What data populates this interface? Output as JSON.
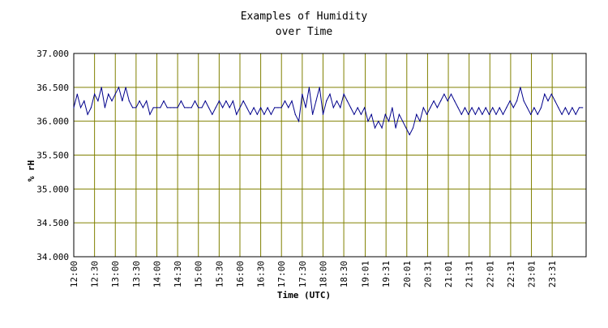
{
  "chart_data": {
    "type": "line",
    "title": [
      "Examples of Humidity",
      "over Time"
    ],
    "xlabel": "Time (UTC)",
    "ylabel": "% rH",
    "ylim": [
      34.0,
      37.0
    ],
    "xlim": [
      "12:00",
      "24:20"
    ],
    "y_ticks": [
      "34.000",
      "34.500",
      "35.000",
      "35.500",
      "36.000",
      "36.500",
      "37.000"
    ],
    "x_ticks": [
      "12:00",
      "12:30",
      "13:00",
      "13:30",
      "14:00",
      "14:30",
      "15:00",
      "15:30",
      "16:00",
      "16:30",
      "17:00",
      "17:30",
      "18:00",
      "18:30",
      "19:01",
      "19:31",
      "20:01",
      "20:31",
      "21:01",
      "21:31",
      "22:01",
      "22:31",
      "23:01",
      "23:31"
    ],
    "grid": true,
    "colors": {
      "line": "#00008b",
      "grid": "#808000",
      "background": "#ffffff",
      "frame": "#000000"
    },
    "series": [
      {
        "x": [
          "12:00",
          "12:05",
          "12:10",
          "12:15",
          "12:20",
          "12:25",
          "12:30",
          "12:35",
          "12:40",
          "12:45",
          "12:50",
          "12:55",
          "13:00",
          "13:05",
          "13:10",
          "13:15",
          "13:20",
          "13:25",
          "13:30",
          "13:35",
          "13:40",
          "13:45",
          "13:50",
          "13:55",
          "14:00",
          "14:05",
          "14:10",
          "14:15",
          "14:20",
          "14:25",
          "14:30",
          "14:35",
          "14:40",
          "14:45",
          "14:50",
          "14:55",
          "15:00",
          "15:05",
          "15:10",
          "15:15",
          "15:20",
          "15:25",
          "15:30",
          "15:35",
          "15:40",
          "15:45",
          "15:50",
          "15:55",
          "16:00",
          "16:05",
          "16:10",
          "16:15",
          "16:20",
          "16:25",
          "16:30",
          "16:35",
          "16:40",
          "16:45",
          "16:50",
          "16:55",
          "17:00",
          "17:05",
          "17:10",
          "17:15",
          "17:20",
          "17:25",
          "17:30",
          "17:35",
          "17:40",
          "17:45",
          "17:50",
          "17:55",
          "18:00",
          "18:05",
          "18:10",
          "18:15",
          "18:20",
          "18:25",
          "18:30",
          "18:35",
          "18:40",
          "18:45",
          "18:50",
          "18:55",
          "19:00",
          "19:05",
          "19:10",
          "19:15",
          "19:20",
          "19:25",
          "19:30",
          "19:35",
          "19:40",
          "19:45",
          "19:50",
          "19:55",
          "20:00",
          "20:05",
          "20:10",
          "20:15",
          "20:20",
          "20:25",
          "20:30",
          "20:35",
          "20:40",
          "20:45",
          "20:50",
          "20:55",
          "21:00",
          "21:05",
          "21:10",
          "21:15",
          "21:20",
          "21:25",
          "21:30",
          "21:35",
          "21:40",
          "21:45",
          "21:50",
          "21:55",
          "22:00",
          "22:05",
          "22:10",
          "22:15",
          "22:20",
          "22:25",
          "22:30",
          "22:35",
          "22:40",
          "22:45",
          "22:50",
          "22:55",
          "23:00",
          "23:05",
          "23:10",
          "23:15",
          "23:20",
          "23:25",
          "23:30",
          "23:35",
          "23:40",
          "23:45",
          "23:50",
          "23:55",
          "24:00",
          "24:05",
          "24:10",
          "24:15"
        ],
        "values": [
          36.2,
          36.4,
          36.2,
          36.3,
          36.1,
          36.2,
          36.4,
          36.3,
          36.5,
          36.2,
          36.4,
          36.3,
          36.4,
          36.5,
          36.3,
          36.5,
          36.3,
          36.2,
          36.2,
          36.3,
          36.2,
          36.3,
          36.1,
          36.2,
          36.2,
          36.2,
          36.3,
          36.2,
          36.2,
          36.2,
          36.2,
          36.3,
          36.2,
          36.2,
          36.2,
          36.3,
          36.2,
          36.2,
          36.3,
          36.2,
          36.1,
          36.2,
          36.3,
          36.2,
          36.3,
          36.2,
          36.3,
          36.1,
          36.2,
          36.3,
          36.2,
          36.1,
          36.2,
          36.1,
          36.2,
          36.1,
          36.2,
          36.1,
          36.2,
          36.2,
          36.2,
          36.3,
          36.2,
          36.3,
          36.1,
          36.0,
          36.4,
          36.2,
          36.5,
          36.1,
          36.3,
          36.5,
          36.1,
          36.3,
          36.4,
          36.2,
          36.3,
          36.2,
          36.4,
          36.3,
          36.2,
          36.1,
          36.2,
          36.1,
          36.2,
          36.0,
          36.1,
          35.9,
          36.0,
          35.9,
          36.1,
          36.0,
          36.2,
          35.9,
          36.1,
          36.0,
          35.9,
          35.8,
          35.9,
          36.1,
          36.0,
          36.2,
          36.1,
          36.2,
          36.3,
          36.2,
          36.3,
          36.4,
          36.3,
          36.4,
          36.3,
          36.2,
          36.1,
          36.2,
          36.1,
          36.2,
          36.1,
          36.2,
          36.1,
          36.2,
          36.1,
          36.2,
          36.1,
          36.2,
          36.1,
          36.2,
          36.3,
          36.2,
          36.3,
          36.5,
          36.3,
          36.2,
          36.1,
          36.2,
          36.1,
          36.2,
          36.4,
          36.3,
          36.4,
          36.3,
          36.2,
          36.1,
          36.2,
          36.1,
          36.2,
          36.1,
          36.2,
          36.2
        ]
      }
    ]
  }
}
